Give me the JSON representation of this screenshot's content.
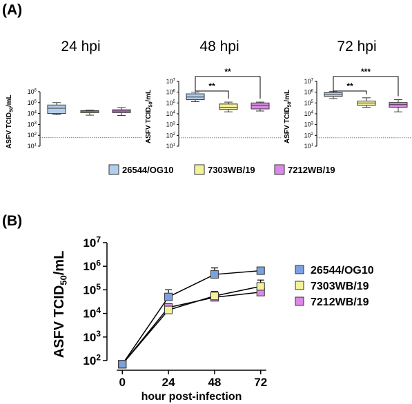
{
  "panels": {
    "a": "(A)",
    "b": "(B)"
  },
  "y_axis_label": {
    "main": "ASFV TCID",
    "sub": "50",
    "tail": "/mL"
  },
  "legend_a": [
    {
      "name": "26544/OG10",
      "color": "#b3cdec"
    },
    {
      "name": "7303WB/19",
      "color": "#f3f29b"
    },
    {
      "name": "7212WB/19",
      "color": "#dc88e8"
    }
  ],
  "chart_data": [
    {
      "type": "box",
      "title": "24 hpi",
      "ylabel": "ASFV TCID50/mL",
      "yscale": "log",
      "ylim": [
        10,
        1000000
      ],
      "y_ticks": [
        "10^1",
        "10^2",
        "10^3",
        "10^4",
        "10^5",
        "10^6"
      ],
      "reference_line": 60,
      "categories": [
        "26544/OG10",
        "7303WB/19",
        "7212WB/19"
      ],
      "boxes": [
        {
          "min": 8000,
          "q1": 10000,
          "median": 30000,
          "q3": 60000,
          "max": 100000
        },
        {
          "min": 7000,
          "q1": 12000,
          "median": 15000,
          "q3": 18000,
          "max": 20000
        },
        {
          "min": 6500,
          "q1": 12000,
          "median": 17000,
          "q3": 22000,
          "max": 35000
        }
      ],
      "significance": []
    },
    {
      "type": "box",
      "title": "48 hpi",
      "ylabel": "ASFV TCID50/mL",
      "yscale": "log",
      "ylim": [
        10,
        10000000
      ],
      "y_ticks": [
        "10^1",
        "10^2",
        "10^3",
        "10^4",
        "10^5",
        "10^6",
        "10^7"
      ],
      "reference_line": 60,
      "categories": [
        "26544/OG10",
        "7303WB/19",
        "7212WB/19"
      ],
      "boxes": [
        {
          "min": 130000,
          "q1": 200000,
          "median": 350000,
          "q3": 700000,
          "max": 1000000
        },
        {
          "min": 15000,
          "q1": 25000,
          "median": 40000,
          "q3": 80000,
          "max": 120000
        },
        {
          "min": 18000,
          "q1": 28000,
          "median": 60000,
          "q3": 100000,
          "max": 120000
        }
      ],
      "significance": [
        {
          "from": 0,
          "to": 1,
          "label": "**"
        },
        {
          "from": 0,
          "to": 2,
          "label": "**"
        }
      ]
    },
    {
      "type": "box",
      "title": "72 hpi",
      "ylabel": "ASFV TCID50/mL",
      "yscale": "log",
      "ylim": [
        10,
        10000000
      ],
      "y_ticks": [
        "10^1",
        "10^2",
        "10^3",
        "10^4",
        "10^5",
        "10^6",
        "10^7"
      ],
      "reference_line": 60,
      "categories": [
        "26544/OG10",
        "7303WB/19",
        "7212WB/19"
      ],
      "boxes": [
        {
          "min": 250000,
          "q1": 400000,
          "median": 650000,
          "q3": 900000,
          "max": 1200000
        },
        {
          "min": 40000,
          "q1": 60000,
          "median": 100000,
          "q3": 150000,
          "max": 300000
        },
        {
          "min": 15000,
          "q1": 40000,
          "median": 70000,
          "q3": 110000,
          "max": 200000
        }
      ],
      "significance": [
        {
          "from": 0,
          "to": 1,
          "label": "**"
        },
        {
          "from": 0,
          "to": 2,
          "label": "***"
        }
      ]
    },
    {
      "type": "line",
      "xlabel": "hour post-infection",
      "ylabel": "ASFV TCID50/mL",
      "yscale": "log",
      "xlim": [
        -8,
        80
      ],
      "ylim": [
        100,
        10000000
      ],
      "x_ticks": [
        0,
        24,
        48,
        72
      ],
      "y_ticks": [
        "10^2",
        "10^3",
        "10^4",
        "10^5",
        "10^6",
        "10^7"
      ],
      "legend": "right",
      "x": [
        0,
        24,
        48,
        72
      ],
      "series": [
        {
          "name": "26544/OG10",
          "color": "#7ba1e0",
          "values": [
            70,
            50000,
            450000,
            650000
          ],
          "err": [
            null,
            50000,
            400000,
            200000
          ]
        },
        {
          "name": "7303WB/19",
          "color": "#f3f29b",
          "values": [
            70,
            14000,
            55000,
            140000
          ],
          "err": [
            null,
            6000,
            30000,
            120000
          ]
        },
        {
          "name": "7212WB/19",
          "color": "#dc88e8",
          "values": [
            70,
            18000,
            48000,
            80000
          ],
          "err": [
            null,
            8000,
            20000,
            40000
          ]
        }
      ]
    }
  ]
}
